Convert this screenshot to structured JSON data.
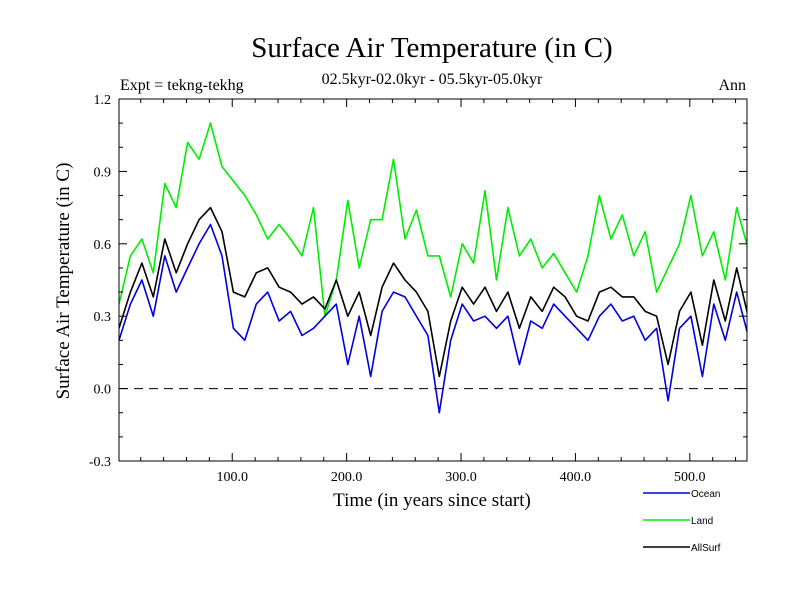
{
  "chart_data": {
    "type": "line",
    "title": "Surface Air Temperature (in C)",
    "subtitle": "02.5kyr-02.0kyr - 05.5kyr-05.0kyr",
    "left_label": "Expt = tekng-tekhg",
    "right_label": "Ann",
    "xlabel": "Time (in years since start)",
    "ylabel": "Surface Air Temperature (in C)",
    "xlim": [
      1,
      550
    ],
    "ylim": [
      -0.3,
      1.2
    ],
    "x_ticks": [
      100,
      200,
      300,
      400,
      500
    ],
    "x_tick_labels": [
      "100.0",
      "200.0",
      "300.0",
      "400.0",
      "500.0"
    ],
    "y_ticks": [
      -0.3,
      0.0,
      0.3,
      0.6,
      0.9,
      1.2
    ],
    "y_tick_labels": [
      "-0.3",
      "0.0",
      "0.3",
      "0.6",
      "0.9",
      "1.2"
    ],
    "reference_line": 0.0,
    "x_step": 10,
    "series": [
      {
        "name": "Land",
        "color": "#00ee00",
        "values": [
          0.35,
          0.55,
          0.62,
          0.48,
          0.85,
          0.75,
          1.02,
          0.95,
          1.1,
          0.92,
          0.86,
          0.8,
          0.72,
          0.62,
          0.68,
          0.62,
          0.55,
          0.75,
          0.3,
          0.45,
          0.78,
          0.5,
          0.7,
          0.7,
          0.95,
          0.62,
          0.74,
          0.55,
          0.55,
          0.38,
          0.6,
          0.52,
          0.82,
          0.45,
          0.75,
          0.55,
          0.62,
          0.5,
          0.56,
          0.48,
          0.4,
          0.55,
          0.8,
          0.62,
          0.72,
          0.55,
          0.65,
          0.4,
          0.5,
          0.6,
          0.8,
          0.55,
          0.65,
          0.45,
          0.75,
          0.58
        ]
      },
      {
        "name": "Ocean",
        "color": "#0000dd",
        "values": [
          0.2,
          0.35,
          0.45,
          0.3,
          0.55,
          0.4,
          0.5,
          0.6,
          0.68,
          0.55,
          0.25,
          0.2,
          0.35,
          0.4,
          0.28,
          0.32,
          0.22,
          0.25,
          0.3,
          0.35,
          0.1,
          0.3,
          0.05,
          0.32,
          0.4,
          0.38,
          0.3,
          0.22,
          -0.1,
          0.2,
          0.35,
          0.28,
          0.3,
          0.25,
          0.3,
          0.1,
          0.28,
          0.25,
          0.35,
          0.3,
          0.25,
          0.2,
          0.3,
          0.35,
          0.28,
          0.3,
          0.2,
          0.25,
          -0.05,
          0.25,
          0.3,
          0.05,
          0.35,
          0.2,
          0.4,
          0.22
        ]
      },
      {
        "name": "AllSurf",
        "color": "#000000",
        "values": [
          0.25,
          0.4,
          0.52,
          0.38,
          0.62,
          0.48,
          0.6,
          0.7,
          0.75,
          0.65,
          0.4,
          0.38,
          0.48,
          0.5,
          0.42,
          0.4,
          0.35,
          0.38,
          0.33,
          0.45,
          0.3,
          0.4,
          0.22,
          0.42,
          0.52,
          0.45,
          0.4,
          0.32,
          0.05,
          0.28,
          0.42,
          0.35,
          0.42,
          0.32,
          0.4,
          0.25,
          0.38,
          0.32,
          0.42,
          0.38,
          0.3,
          0.28,
          0.4,
          0.42,
          0.38,
          0.38,
          0.32,
          0.3,
          0.1,
          0.32,
          0.4,
          0.18,
          0.45,
          0.28,
          0.5,
          0.3
        ]
      }
    ]
  }
}
